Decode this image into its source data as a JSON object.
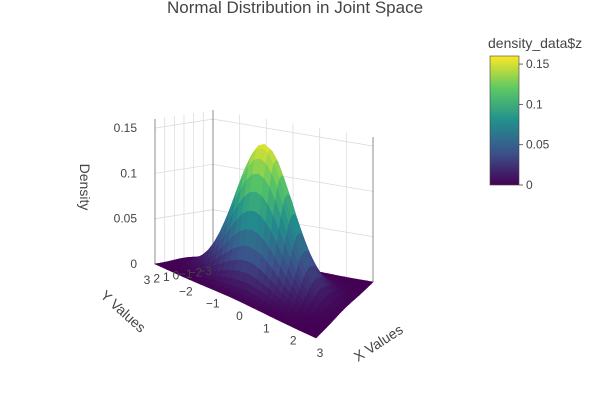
{
  "chart_data": {
    "type": "surface",
    "title": "Normal Distribution in Joint Space",
    "xlabel": "X Values",
    "ylabel": "Y Values",
    "zlabel": "Density",
    "xlim": [
      -3,
      3
    ],
    "ylim": [
      -3,
      3
    ],
    "zlim": [
      0,
      0.16
    ],
    "x_ticks": [
      -2,
      -1,
      0,
      1,
      2,
      3
    ],
    "y_ticks": [
      -3,
      -2,
      -1,
      0,
      1,
      2,
      3
    ],
    "z_ticks": [
      0,
      0.05,
      0.1,
      0.15
    ],
    "x_tick_labels": [
      "−2",
      "−1",
      "0",
      "1",
      "2",
      "3"
    ],
    "y_tick_labels": [
      "−3",
      "−2",
      "−1",
      "0",
      "1",
      "2",
      "3"
    ],
    "z_tick_labels": [
      "0",
      "0.05",
      "0.1",
      "0.15"
    ],
    "peak_density": 0.155,
    "density_mean": [
      0,
      0
    ],
    "density_sd": [
      1,
      1
    ],
    "colorscale": "viridis",
    "colorscale_stops": [
      "#440154",
      "#3b528b",
      "#21908d",
      "#5dc963",
      "#fde725"
    ],
    "colorbar": {
      "title": "density_data$z",
      "ticks": [
        0,
        0.05,
        0.1,
        0.15
      ],
      "tick_labels": [
        "0",
        "0.05",
        "0.1",
        "0.15"
      ],
      "range": [
        0,
        0.16
      ]
    },
    "grid": true,
    "legend": "colorbar right"
  }
}
